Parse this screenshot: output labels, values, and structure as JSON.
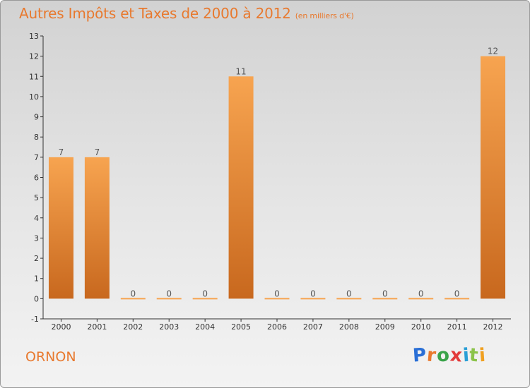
{
  "header": {
    "title": "Autres Impôts et Taxes de 2000 à 2012",
    "subtitle": "(en milliers d'€)"
  },
  "commune": "ORNON",
  "logo": {
    "text": "Proxiti",
    "letters": [
      "P",
      "r",
      "o",
      "x",
      "i",
      "t",
      "i"
    ],
    "colors": [
      "#2a6fd6",
      "#e8792e",
      "#3aa34a",
      "#e33b3b",
      "#2a9fd6",
      "#8bc34a",
      "#f0a020"
    ]
  },
  "colors": {
    "bar_light": "#f7a450",
    "bar_dark": "#c8681e",
    "title": "#e8792e"
  },
  "chart_data": {
    "type": "bar",
    "title": "Autres Impôts et Taxes de 2000 à 2012",
    "subtitle": "(en milliers d'€)",
    "categories": [
      "2000",
      "2001",
      "2002",
      "2003",
      "2004",
      "2005",
      "2006",
      "2007",
      "2008",
      "2009",
      "2010",
      "2011",
      "2012"
    ],
    "values": [
      7,
      7,
      0,
      0,
      0,
      11,
      0,
      0,
      0,
      0,
      0,
      0,
      12
    ],
    "value_labels": [
      "7",
      "7",
      "0",
      "0",
      "0",
      "11",
      "0",
      "0",
      "0",
      "0",
      "0",
      "0",
      "12"
    ],
    "ylim": [
      -1,
      13
    ],
    "yticks": [
      "-1",
      "0",
      "1",
      "2",
      "3",
      "4",
      "5",
      "6",
      "7",
      "8",
      "9",
      "10",
      "11",
      "12",
      "13"
    ],
    "xlabel": "",
    "ylabel": "",
    "grid": false,
    "legend": "none"
  }
}
